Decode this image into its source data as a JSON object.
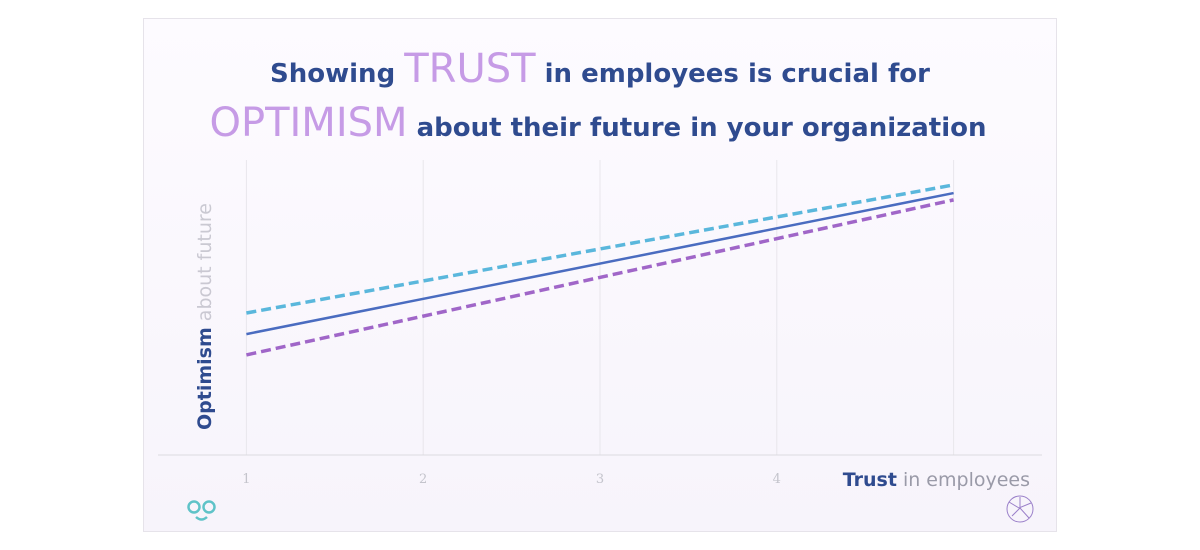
{
  "chart_data": {
    "type": "line",
    "title_parts": [
      "Showing ",
      "TRUST",
      " in employees is crucial for",
      "OPTIMISM",
      " about their future in your organization"
    ],
    "y_label_parts": [
      "Optimism",
      " about future"
    ],
    "x_label_parts": [
      "Trust",
      " in employees"
    ],
    "x": [
      1,
      5
    ],
    "xlim": [
      0.5,
      5.5
    ],
    "xticks": [
      1,
      2,
      3,
      4
    ],
    "ylim": [
      0,
      100
    ],
    "grid": true,
    "series": [
      {
        "color": "#4a6cc0",
        "dash": false,
        "values": [
          37.2,
          80.6
        ]
      },
      {
        "color": "#5ab7dc",
        "dash": true,
        "values": [
          43.7,
          83.1
        ]
      },
      {
        "color": "#a066c8",
        "dash": true,
        "values": [
          30.8,
          78.5
        ]
      }
    ]
  }
}
